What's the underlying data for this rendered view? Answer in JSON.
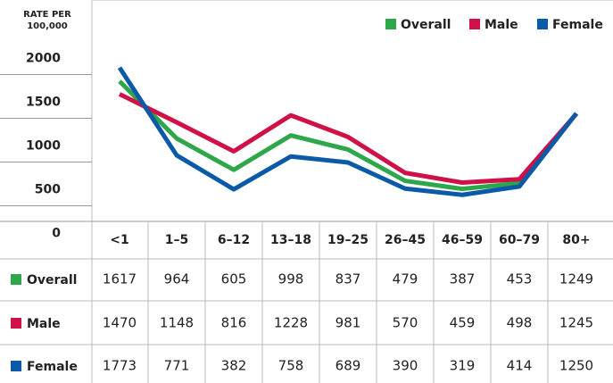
{
  "chart_data": {
    "type": "line",
    "y_label": "RATE PER 100,000",
    "categories": [
      "<1",
      "1–5",
      "6–12",
      "13–18",
      "19–25",
      "26–45",
      "46–59",
      "60–79",
      "80+"
    ],
    "series": [
      {
        "name": "Overall",
        "color": "#2ea64a",
        "values": [
          1617,
          964,
          605,
          998,
          837,
          479,
          387,
          453,
          1249
        ]
      },
      {
        "name": "Male",
        "color": "#cf1148",
        "values": [
          1470,
          1148,
          816,
          1228,
          981,
          570,
          459,
          498,
          1245
        ]
      },
      {
        "name": "Female",
        "color": "#0b5aa8",
        "values": [
          1773,
          771,
          382,
          758,
          689,
          390,
          319,
          414,
          1250
        ]
      }
    ],
    "ylim": [
      0,
      2000
    ],
    "yticks": [
      0,
      500,
      1000,
      1500,
      2000
    ],
    "legend": "top-right"
  }
}
